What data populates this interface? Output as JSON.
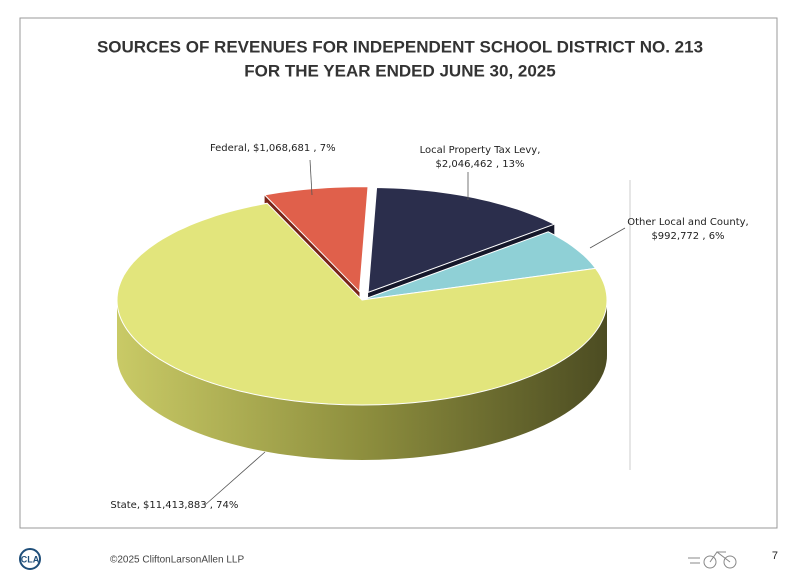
{
  "chart_data": {
    "type": "pie3d",
    "title": "SOURCES OF REVENUES FOR INDEPENDENT SCHOOL DISTRICT NO. 213",
    "subtitle": "FOR THE YEAR ENDED JUNE 30, 2025",
    "categories": [
      "Local Property Tax Levy,",
      "Other Local and County,",
      "State,",
      "Federal,"
    ],
    "values": [
      2046462,
      992772,
      11413883,
      1068681
    ],
    "value_labels": [
      "$2,046,462 , 13%",
      "$992,772 , 6%",
      "$11,413,883 , 74%",
      "$1,068,681 , 7%"
    ],
    "colors": [
      "#2b2e4c",
      "#8fd0d6",
      "#e2e57c",
      "#e0604b"
    ]
  },
  "footer": {
    "copyright": "©2025 CliftonLarsonAllen LLP",
    "page": "7",
    "logo": "CLA"
  }
}
